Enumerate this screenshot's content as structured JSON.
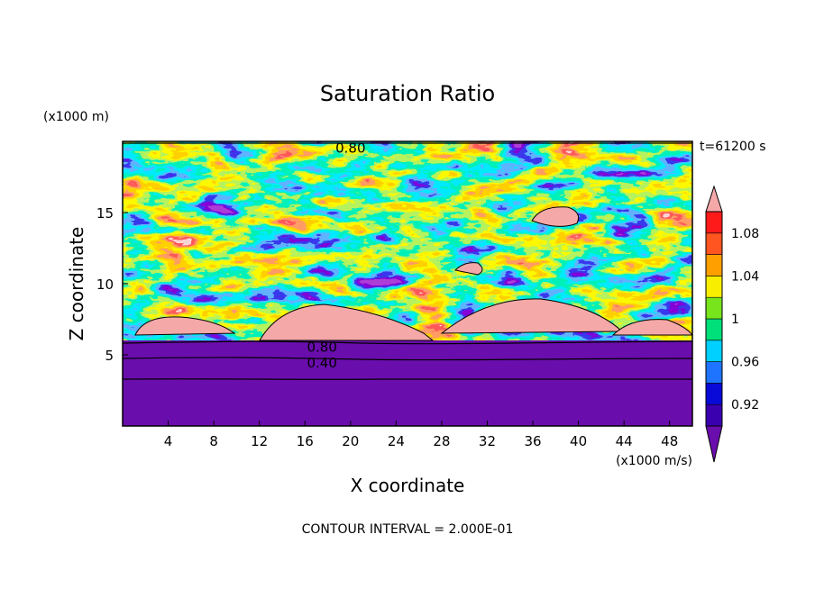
{
  "chart_data": {
    "type": "heatmap",
    "title": "Saturation Ratio",
    "xlabel": "X coordinate",
    "ylabel": "Z coordinate",
    "x_unit": "(x1000 m/s)",
    "y_unit": "(x1000 m)",
    "time_label": "t=61200 s",
    "footer": "CONTOUR INTERVAL = 2.000E-01",
    "xlim": [
      0,
      50
    ],
    "ylim": [
      0,
      20
    ],
    "x_ticks": [
      4,
      8,
      12,
      16,
      20,
      24,
      28,
      32,
      36,
      40,
      44,
      48
    ],
    "x_tick_labels": [
      "4",
      "8",
      "12",
      "16",
      "20",
      "24",
      "28",
      "32",
      "36",
      "40",
      "44",
      "48"
    ],
    "y_ticks": [
      5,
      10,
      15
    ],
    "y_tick_labels": [
      "5",
      "10",
      "15"
    ],
    "contour_labels": [
      {
        "text": "0.80",
        "x": 20.0,
        "y": 19.6
      },
      {
        "text": "0.80",
        "x": 17.5,
        "y": 5.6
      },
      {
        "text": "0.40",
        "x": 17.5,
        "y": 4.5
      }
    ],
    "colorbar": {
      "levels": [
        0.9,
        0.92,
        0.94,
        0.96,
        0.98,
        1.0,
        1.02,
        1.04,
        1.06,
        1.08,
        1.1
      ],
      "tick_labels": [
        "0.92",
        "0.96",
        "1",
        "1.04",
        "1.08"
      ],
      "tick_values": [
        0.92,
        0.96,
        1.0,
        1.04,
        1.08
      ],
      "colors": [
        "#6a0dad",
        "#3a00b0",
        "#0a0ad8",
        "#1f74ff",
        "#00d0ff",
        "#00e07a",
        "#78e41c",
        "#f8ef00",
        "#ffa000",
        "#ff5520",
        "#ff1a1a",
        "#f4a8a8"
      ],
      "extend": "both"
    },
    "field_description_levels": {
      "below_z_6": "saturation ratio < 0.90 (purple), contours at 0.40 and 0.80",
      "z_6_to_20": "turbulent layer with values 0.90 to >1.10"
    },
    "grid": false
  }
}
